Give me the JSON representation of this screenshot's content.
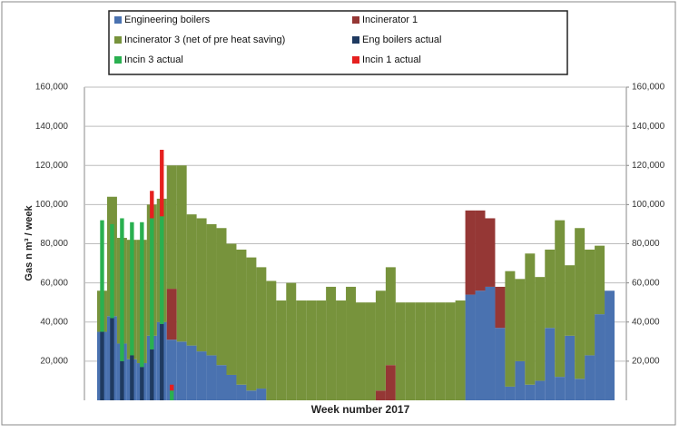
{
  "chart_data": {
    "type": "stacked-bar",
    "ylabel": "Gas n m³ / week",
    "xlabel": "Week number 2017",
    "categories": [
      null,
      null,
      null,
      null,
      null,
      null,
      null,
      null,
      null,
      null,
      null,
      null,
      null,
      null,
      null,
      null,
      null,
      null,
      null,
      null,
      null,
      null,
      null,
      null,
      null,
      null,
      null,
      null,
      null,
      null,
      null,
      null,
      null,
      null,
      null,
      null,
      null,
      null,
      null,
      null,
      null,
      null,
      null,
      null,
      null,
      null,
      null,
      null,
      null,
      null,
      null,
      null
    ],
    "series": [
      {
        "name": "Engineering boilers",
        "color": "#4a72b0",
        "stack": "planned",
        "values": [
          35000,
          43000,
          29000,
          21000,
          19000,
          33000,
          40000,
          31000,
          30000,
          28000,
          25000,
          23000,
          18000,
          13000,
          8000,
          5000,
          6000,
          0,
          0,
          0,
          0,
          0,
          0,
          0,
          0,
          0,
          0,
          0,
          0,
          0,
          0,
          0,
          0,
          0,
          0,
          0,
          0,
          54000,
          56000,
          58000,
          37000,
          7000,
          20000,
          8000,
          10000,
          37000,
          12000,
          33000,
          11000,
          23000,
          44000,
          56000
        ]
      },
      {
        "name": "Incinerator 1",
        "color": "#953735",
        "stack": "planned",
        "values": [
          0,
          0,
          0,
          0,
          0,
          0,
          0,
          26000,
          0,
          0,
          0,
          0,
          0,
          0,
          0,
          0,
          0,
          0,
          0,
          0,
          0,
          0,
          0,
          0,
          0,
          0,
          0,
          0,
          5000,
          18000,
          0,
          0,
          0,
          0,
          0,
          0,
          0,
          43000,
          41000,
          35000,
          21000,
          0,
          0,
          0,
          0,
          0,
          0,
          0,
          0,
          0,
          0,
          0
        ]
      },
      {
        "name": "Incinerator 3 (net of pre heat saving)",
        "color": "#77933c",
        "stack": "planned",
        "values": [
          21000,
          61000,
          54000,
          61000,
          63000,
          67000,
          63000,
          63000,
          90000,
          67000,
          68000,
          67000,
          70000,
          67000,
          69000,
          68000,
          62000,
          61000,
          51000,
          60000,
          51000,
          51000,
          51000,
          58000,
          51000,
          58000,
          50000,
          50000,
          51000,
          50000,
          50000,
          50000,
          50000,
          50000,
          50000,
          50000,
          51000,
          0,
          0,
          0,
          0,
          59000,
          42000,
          67000,
          53000,
          40000,
          80000,
          36000,
          77000,
          54000,
          35000,
          0
        ]
      },
      {
        "name": "Eng boilers actual",
        "color": "#1f3a60",
        "stack": "actual",
        "values": [
          35000,
          42000,
          20000,
          23000,
          17000,
          26000,
          39000,
          null,
          null,
          null,
          null,
          null,
          null,
          null,
          null,
          null,
          null,
          null,
          null,
          null,
          null,
          null,
          null,
          null,
          null,
          null,
          null,
          null,
          null,
          null,
          null,
          null,
          null,
          null,
          null,
          null,
          null,
          null,
          null,
          null,
          null,
          null,
          null,
          null,
          null,
          null,
          null,
          null,
          null,
          null,
          null,
          null
        ]
      },
      {
        "name": "Incin 3 actual",
        "color": "#2ab050",
        "stack": "actual",
        "values": [
          57000,
          48000,
          73000,
          68000,
          74000,
          67000,
          55000,
          5000,
          null,
          null,
          null,
          null,
          null,
          null,
          null,
          null,
          null,
          null,
          null,
          null,
          null,
          null,
          null,
          null,
          null,
          null,
          null,
          null,
          null,
          null,
          null,
          null,
          null,
          null,
          null,
          null,
          null,
          null,
          null,
          null,
          null,
          null,
          null,
          null,
          null,
          null,
          null,
          null,
          null,
          null,
          null,
          null
        ]
      },
      {
        "name": "Incin 1 actual",
        "color": "#e5201f",
        "stack": "actual",
        "values": [
          null,
          null,
          null,
          null,
          null,
          14000,
          34000,
          3000,
          null,
          null,
          null,
          null,
          null,
          null,
          null,
          null,
          null,
          null,
          null,
          null,
          null,
          null,
          null,
          null,
          null,
          null,
          null,
          null,
          null,
          null,
          null,
          null,
          null,
          null,
          null,
          null,
          null,
          null,
          null,
          null,
          null,
          null,
          null,
          null,
          null,
          null,
          null,
          null,
          null,
          null,
          null,
          null
        ]
      }
    ],
    "ylim": [
      0,
      160000
    ],
    "yticks": [
      {
        "value": 20000,
        "label": "20,000"
      },
      {
        "value": 40000,
        "label": "40,000"
      },
      {
        "value": 60000,
        "label": "60,000"
      },
      {
        "value": 80000,
        "label": "80,000"
      },
      {
        "value": 100000,
        "label": "100,000"
      },
      {
        "value": 120000,
        "label": "120,000"
      },
      {
        "value": 140000,
        "label": "140,000"
      },
      {
        "value": 160000,
        "label": "160,000"
      }
    ],
    "y2lim": [
      0,
      160000
    ],
    "y2ticks": [
      {
        "value": 20000,
        "label": "20,000"
      },
      {
        "value": 40000,
        "label": "40,000"
      },
      {
        "value": 60000,
        "label": "60,000"
      },
      {
        "value": 80000,
        "label": "80,000"
      },
      {
        "value": 100000,
        "label": "100,000"
      },
      {
        "value": 120000,
        "label": "120,000"
      },
      {
        "value": 140000,
        "label": "140,000"
      },
      {
        "value": 160000,
        "label": "160,000"
      }
    ],
    "grid": true,
    "legend": "top"
  }
}
